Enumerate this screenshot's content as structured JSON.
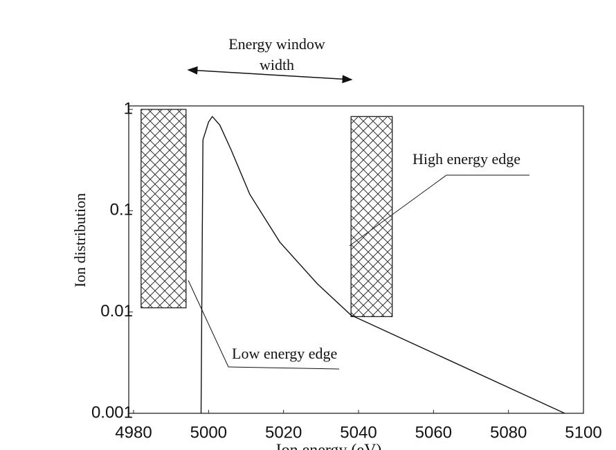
{
  "chart_data": {
    "type": "line",
    "ylabel": "Ion distribution",
    "xlabel": "Ion energy (eV)",
    "annotations": [
      "Energy window width",
      "High energy edge",
      "Low energy edge"
    ],
    "x": [
      4998,
      4998.5,
      5000,
      5001,
      5003,
      5006,
      5011,
      5019,
      5029,
      5038,
      5095
    ],
    "series": [
      {
        "color": "#111111",
        "values": [
          0.001,
          0.5,
          0.75,
          0.85,
          0.7,
          0.4,
          0.145,
          0.049,
          0.019,
          0.0093,
          0.001
        ]
      }
    ],
    "windows": [
      {
        "x": [
          4982,
          4994
        ],
        "y": [
          0.011,
          1
        ]
      },
      {
        "x": [
          5038,
          5049
        ],
        "y": [
          0.009,
          0.85
        ]
      }
    ],
    "xlim": [
      4980,
      5100
    ],
    "xticks": [
      4980,
      5000,
      5020,
      5040,
      5060,
      5080,
      5100
    ],
    "ylim": [
      0.001,
      1
    ],
    "yticks": [
      1,
      0.1,
      0.01,
      0.001
    ],
    "ylog": true
  }
}
